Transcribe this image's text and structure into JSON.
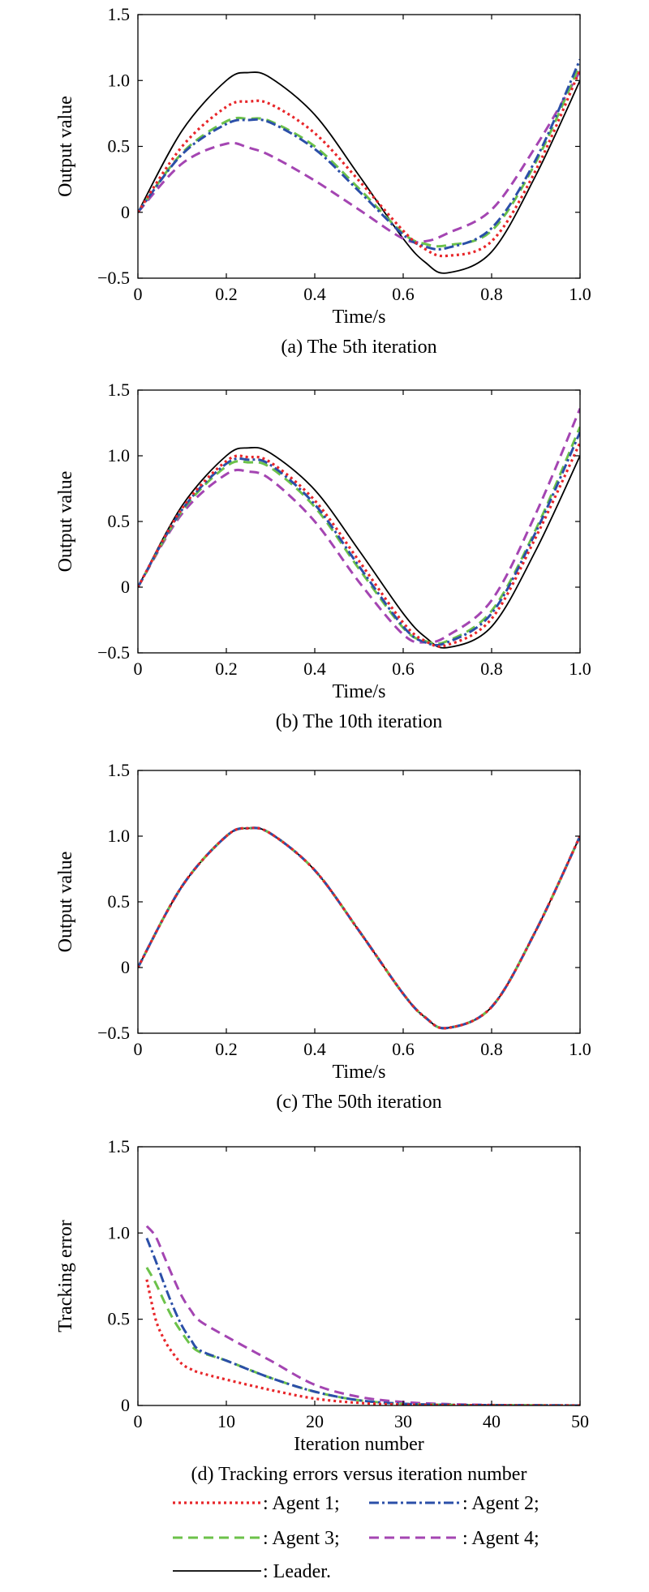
{
  "colors": {
    "agent1": "#e8262a",
    "agent2": "#2b4fa8",
    "agent3": "#6cc24a",
    "agent4": "#a445b2",
    "leader": "#000000"
  },
  "legend": [
    {
      "key": "agent1",
      "label": ": Agent 1;"
    },
    {
      "key": "agent2",
      "label": ": Agent 2;"
    },
    {
      "key": "agent3",
      "label": ": Agent 3;"
    },
    {
      "key": "agent4",
      "label": ": Agent 4;"
    },
    {
      "key": "leader",
      "label": ": Leader."
    }
  ],
  "chart_data": [
    {
      "type": "line",
      "caption": "(a) The 5th iteration",
      "xlabel": "Time/s",
      "ylabel": "Output value",
      "xlim": [
        0,
        1
      ],
      "ylim": [
        -0.5,
        1.5
      ],
      "xticks": [
        0,
        0.2,
        0.4,
        0.6,
        0.8,
        1.0
      ],
      "xtick_labels": [
        "0",
        "0.2",
        "0.4",
        "0.6",
        "0.8",
        "1.0"
      ],
      "yticks": [
        -0.5,
        0,
        0.5,
        1.0,
        1.5
      ],
      "ytick_labels": [
        "−0.5",
        "0",
        "0.5",
        "1.0",
        "1.5"
      ],
      "x": [
        0,
        0.1,
        0.2,
        0.25,
        0.3,
        0.4,
        0.5,
        0.6,
        0.65,
        0.7,
        0.8,
        0.9,
        1.0
      ],
      "series": [
        {
          "key": "leader",
          "name": "Leader",
          "values": [
            0,
            0.62,
            1.0,
            1.06,
            1.02,
            0.74,
            0.28,
            -0.2,
            -0.38,
            -0.46,
            -0.3,
            0.28,
            1.0
          ]
        },
        {
          "key": "agent1",
          "name": "Agent 1",
          "values": [
            0,
            0.5,
            0.8,
            0.84,
            0.82,
            0.6,
            0.24,
            -0.14,
            -0.28,
            -0.33,
            -0.22,
            0.32,
            1.08
          ]
        },
        {
          "key": "agent2",
          "name": "Agent 2",
          "values": [
            0,
            0.44,
            0.67,
            0.7,
            0.68,
            0.48,
            0.16,
            -0.17,
            -0.26,
            -0.27,
            -0.12,
            0.4,
            1.16
          ]
        },
        {
          "key": "agent3",
          "name": "Agent 3",
          "values": [
            0,
            0.45,
            0.69,
            0.71,
            0.69,
            0.5,
            0.18,
            -0.16,
            -0.24,
            -0.25,
            -0.14,
            0.38,
            1.12
          ]
        },
        {
          "key": "agent4",
          "name": "Agent 4",
          "values": [
            0,
            0.37,
            0.52,
            0.49,
            0.43,
            0.24,
            0.02,
            -0.2,
            -0.22,
            -0.16,
            0.02,
            0.5,
            1.07
          ]
        }
      ]
    },
    {
      "type": "line",
      "caption": "(b) The 10th iteration",
      "xlabel": "Time/s",
      "ylabel": "Output value",
      "xlim": [
        0,
        1
      ],
      "ylim": [
        -0.5,
        1.5
      ],
      "xticks": [
        0,
        0.2,
        0.4,
        0.6,
        0.8,
        1.0
      ],
      "xtick_labels": [
        "0",
        "0.2",
        "0.4",
        "0.6",
        "0.8",
        "1.0"
      ],
      "yticks": [
        -0.5,
        0,
        0.5,
        1.0,
        1.5
      ],
      "ytick_labels": [
        "−0.5",
        "0",
        "0.5",
        "1.0",
        "1.5"
      ],
      "x": [
        0,
        0.1,
        0.2,
        0.25,
        0.3,
        0.4,
        0.5,
        0.6,
        0.65,
        0.7,
        0.8,
        0.9,
        1.0
      ],
      "series": [
        {
          "key": "leader",
          "name": "Leader",
          "values": [
            0,
            0.62,
            1.0,
            1.06,
            1.02,
            0.74,
            0.28,
            -0.2,
            -0.38,
            -0.46,
            -0.3,
            0.28,
            1.0
          ]
        },
        {
          "key": "agent1",
          "name": "Agent 1",
          "values": [
            0,
            0.6,
            0.96,
            0.99,
            0.95,
            0.66,
            0.2,
            -0.27,
            -0.41,
            -0.44,
            -0.24,
            0.38,
            1.1
          ]
        },
        {
          "key": "agent2",
          "name": "Agent 2",
          "values": [
            0,
            0.59,
            0.94,
            0.97,
            0.93,
            0.63,
            0.16,
            -0.3,
            -0.42,
            -0.42,
            -0.2,
            0.42,
            1.18
          ]
        },
        {
          "key": "agent3",
          "name": "Agent 3",
          "values": [
            0,
            0.58,
            0.92,
            0.95,
            0.91,
            0.61,
            0.14,
            -0.31,
            -0.41,
            -0.41,
            -0.18,
            0.44,
            1.22
          ]
        },
        {
          "key": "agent4",
          "name": "Agent 4",
          "values": [
            0,
            0.56,
            0.86,
            0.88,
            0.82,
            0.5,
            0.04,
            -0.36,
            -0.42,
            -0.37,
            -0.1,
            0.56,
            1.36
          ]
        }
      ]
    },
    {
      "type": "line",
      "caption": "(c) The 50th iteration",
      "xlabel": "Time/s",
      "ylabel": "Output value",
      "xlim": [
        0,
        1
      ],
      "ylim": [
        -0.5,
        1.5
      ],
      "xticks": [
        0,
        0.2,
        0.4,
        0.6,
        0.8,
        1.0
      ],
      "xtick_labels": [
        "0",
        "0.2",
        "0.4",
        "0.6",
        "0.8",
        "1.0"
      ],
      "yticks": [
        -0.5,
        0,
        0.5,
        1.0,
        1.5
      ],
      "ytick_labels": [
        "−0.5",
        "0",
        "0.5",
        "1.0",
        "1.5"
      ],
      "x": [
        0,
        0.1,
        0.2,
        0.25,
        0.3,
        0.4,
        0.5,
        0.6,
        0.65,
        0.7,
        0.8,
        0.9,
        1.0
      ],
      "series": [
        {
          "key": "leader",
          "name": "Leader",
          "values": [
            0,
            0.62,
            1.0,
            1.06,
            1.02,
            0.74,
            0.28,
            -0.2,
            -0.38,
            -0.46,
            -0.3,
            0.28,
            1.0
          ]
        },
        {
          "key": "agent1",
          "name": "Agent 1",
          "values": [
            0,
            0.62,
            1.0,
            1.06,
            1.02,
            0.74,
            0.28,
            -0.2,
            -0.38,
            -0.46,
            -0.3,
            0.28,
            1.0
          ]
        },
        {
          "key": "agent2",
          "name": "Agent 2",
          "values": [
            0,
            0.62,
            1.0,
            1.06,
            1.02,
            0.74,
            0.28,
            -0.2,
            -0.38,
            -0.46,
            -0.3,
            0.28,
            1.0
          ]
        },
        {
          "key": "agent3",
          "name": "Agent 3",
          "values": [
            0,
            0.62,
            1.0,
            1.06,
            1.02,
            0.74,
            0.28,
            -0.2,
            -0.38,
            -0.46,
            -0.3,
            0.28,
            1.0
          ]
        },
        {
          "key": "agent4",
          "name": "Agent 4",
          "values": [
            0,
            0.62,
            1.0,
            1.06,
            1.02,
            0.74,
            0.28,
            -0.2,
            -0.38,
            -0.46,
            -0.3,
            0.28,
            1.0
          ]
        }
      ]
    },
    {
      "type": "line",
      "caption": "(d) Tracking errors versus iteration number",
      "xlabel": "Iteration number",
      "ylabel": "Tracking error",
      "xlim": [
        0,
        50
      ],
      "ylim": [
        0,
        1.5
      ],
      "xticks": [
        0,
        10,
        20,
        30,
        40,
        50
      ],
      "xtick_labels": [
        "0",
        "10",
        "20",
        "30",
        "40",
        "50"
      ],
      "yticks": [
        0,
        0.5,
        1.0,
        1.5
      ],
      "ytick_labels": [
        "0",
        "0.5",
        "1.0",
        "1.5"
      ],
      "x": [
        1,
        2,
        3,
        4,
        5,
        6,
        7,
        10,
        15,
        20,
        25,
        30,
        35,
        40,
        45,
        50
      ],
      "series": [
        {
          "key": "agent1",
          "name": "Agent 1",
          "values": [
            0.73,
            0.5,
            0.38,
            0.3,
            0.24,
            0.21,
            0.19,
            0.15,
            0.09,
            0.04,
            0.015,
            0.005,
            0.002,
            0.001,
            0,
            0
          ]
        },
        {
          "key": "agent2",
          "name": "Agent 2",
          "values": [
            0.97,
            0.84,
            0.7,
            0.57,
            0.46,
            0.38,
            0.32,
            0.26,
            0.16,
            0.08,
            0.03,
            0.01,
            0.004,
            0.002,
            0.001,
            0
          ]
        },
        {
          "key": "agent3",
          "name": "Agent 3",
          "values": [
            0.8,
            0.71,
            0.6,
            0.5,
            0.42,
            0.35,
            0.31,
            0.26,
            0.16,
            0.08,
            0.03,
            0.01,
            0.004,
            0.002,
            0.001,
            0
          ]
        },
        {
          "key": "agent4",
          "name": "Agent 4",
          "values": [
            1.04,
            0.98,
            0.86,
            0.74,
            0.63,
            0.55,
            0.49,
            0.4,
            0.26,
            0.12,
            0.05,
            0.02,
            0.008,
            0.003,
            0.001,
            0
          ]
        }
      ]
    }
  ]
}
